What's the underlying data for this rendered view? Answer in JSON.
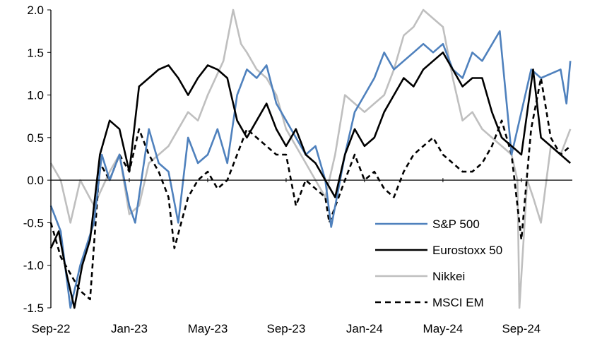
{
  "chart_data": {
    "type": "line",
    "title": "",
    "xlabel": "",
    "ylabel": "",
    "x_unit": "months since Sep-22",
    "xlim": [
      0,
      26.6
    ],
    "ylim": [
      -1.5,
      2.0
    ],
    "yticks": [
      -1.5,
      -1.0,
      -0.5,
      0.0,
      0.5,
      1.0,
      1.5,
      2.0
    ],
    "ytick_labels": [
      "-1.5",
      "-1.0",
      "-0.5",
      "0.0",
      "0.5",
      "1.0",
      "1.5",
      "2.0"
    ],
    "xticks": [
      0,
      4,
      8,
      12,
      16,
      20,
      24
    ],
    "xtick_labels": [
      "Sep-22",
      "Jan-23",
      "May-23",
      "Sep-23",
      "Jan-24",
      "May-24",
      "Sep-24"
    ],
    "grid": false,
    "legend_position": "bottom-right",
    "series": [
      {
        "name": "S&P 500",
        "color": "#4f81bd",
        "style": "solid",
        "x": [
          0,
          0.5,
          1,
          1.5,
          2.2,
          2.6,
          3,
          3.5,
          4,
          4.3,
          5,
          5.5,
          6,
          6.5,
          7,
          7.5,
          8,
          8.5,
          9,
          9.5,
          10,
          10.5,
          11,
          11.5,
          12,
          12.5,
          13,
          13.5,
          14,
          14.3,
          15,
          15.5,
          16,
          16.5,
          17,
          17.5,
          18,
          18.5,
          19,
          19.5,
          20,
          20.5,
          21,
          21.5,
          22,
          22.9,
          23.5,
          24,
          24.5,
          25,
          25.5,
          26,
          26.3,
          26.5
        ],
        "y": [
          -0.3,
          -0.6,
          -1.5,
          -1.0,
          -0.5,
          0.3,
          0.0,
          0.3,
          -0.3,
          -0.5,
          0.6,
          0.2,
          0.1,
          -0.5,
          0.5,
          0.2,
          0.3,
          0.6,
          0.2,
          1.0,
          1.3,
          1.2,
          1.35,
          0.9,
          0.7,
          0.5,
          0.3,
          0.4,
          0.0,
          -0.55,
          0.3,
          0.8,
          1.0,
          1.2,
          1.5,
          1.3,
          1.4,
          1.5,
          1.6,
          1.5,
          1.6,
          1.3,
          1.2,
          1.5,
          1.4,
          1.75,
          0.3,
          0.8,
          1.3,
          1.2,
          1.25,
          1.3,
          0.9,
          1.4
        ]
      },
      {
        "name": "Eurostoxx 50",
        "color": "#000000",
        "style": "solid",
        "x": [
          0,
          0.4,
          0.8,
          1.2,
          1.6,
          2,
          2.5,
          3,
          3.5,
          4,
          4.5,
          5,
          5.5,
          6,
          6.5,
          7,
          7.5,
          8,
          8.5,
          9,
          9.5,
          10,
          10.5,
          11,
          11.5,
          12,
          12.5,
          13,
          13.5,
          14,
          14.5,
          15,
          15.5,
          16,
          16.5,
          17,
          17.5,
          18,
          18.5,
          19,
          19.5,
          20,
          20.5,
          21,
          21.5,
          22,
          22.5,
          23,
          23.5,
          24,
          24.6,
          25,
          25.5,
          26,
          26.5
        ],
        "y": [
          -0.8,
          -0.6,
          -1.1,
          -1.5,
          -1.0,
          -0.7,
          0.3,
          0.7,
          0.6,
          0.1,
          1.1,
          1.2,
          1.3,
          1.35,
          1.2,
          1.0,
          1.2,
          1.35,
          1.3,
          1.2,
          0.7,
          0.5,
          0.7,
          0.9,
          0.6,
          0.4,
          0.6,
          0.3,
          0.2,
          0.0,
          -0.2,
          0.3,
          0.6,
          0.4,
          0.5,
          0.8,
          1.0,
          1.2,
          1.1,
          1.3,
          1.4,
          1.5,
          1.3,
          1.1,
          1.2,
          1.2,
          0.8,
          0.5,
          0.4,
          0.3,
          1.3,
          0.5,
          0.4,
          0.3,
          0.2
        ]
      },
      {
        "name": "Nikkei",
        "color": "#bfbfbf",
        "style": "solid",
        "x": [
          0,
          0.5,
          1,
          1.5,
          2.2,
          3,
          3.5,
          4,
          4.5,
          5,
          5.5,
          6,
          6.5,
          7,
          7.5,
          8,
          8.8,
          9.3,
          9.7,
          10,
          10.5,
          11,
          11.5,
          12,
          12.5,
          13,
          13.5,
          14,
          14.5,
          15,
          15.5,
          16,
          16.5,
          17,
          17.5,
          18,
          18.5,
          19,
          19.5,
          20,
          20.5,
          21,
          21.5,
          22,
          22.5,
          23,
          23.5,
          23.8,
          23.9,
          24.3,
          24.6,
          25,
          25.5,
          26,
          26.5
        ],
        "y": [
          0.2,
          0.0,
          -0.5,
          0.0,
          -0.3,
          0.1,
          0.3,
          -0.4,
          -0.3,
          0.2,
          0.3,
          0.4,
          0.6,
          0.8,
          0.7,
          1.0,
          1.4,
          2.0,
          1.6,
          1.5,
          1.3,
          1.2,
          1.0,
          0.6,
          0.4,
          0.2,
          0.0,
          -0.2,
          0.3,
          1.0,
          0.9,
          0.8,
          0.9,
          1.0,
          1.3,
          1.7,
          1.8,
          2.0,
          1.9,
          1.8,
          1.2,
          0.7,
          0.8,
          0.6,
          0.5,
          0.4,
          0.3,
          0.0,
          -1.5,
          0.0,
          -0.2,
          -0.5,
          0.4,
          0.3,
          0.6
        ]
      },
      {
        "name": "MSCI EM",
        "color": "#000000",
        "style": "dashed",
        "x": [
          0,
          0.5,
          1,
          1.5,
          2,
          2.5,
          3,
          3.5,
          4,
          4.5,
          5,
          5.5,
          6,
          6.3,
          7,
          7.5,
          8,
          8.5,
          9,
          9.5,
          10,
          10.5,
          11,
          11.5,
          12,
          12.5,
          13,
          13.5,
          14,
          14.2,
          15,
          15.5,
          16,
          16.5,
          17,
          17.5,
          18,
          18.5,
          19,
          19.5,
          20,
          20.5,
          21,
          21.5,
          22,
          22.5,
          23,
          23.5,
          24,
          24.5,
          25,
          25.5,
          26,
          26.5
        ],
        "y": [
          -0.5,
          -0.9,
          -1.1,
          -1.3,
          -1.4,
          0.2,
          0.0,
          0.3,
          0.1,
          0.6,
          0.3,
          0.1,
          -0.2,
          -0.8,
          -0.2,
          0.0,
          0.1,
          -0.1,
          0.0,
          0.3,
          0.6,
          0.5,
          0.4,
          0.3,
          0.3,
          -0.3,
          0.0,
          -0.1,
          -0.2,
          -0.5,
          0.0,
          0.3,
          0.0,
          0.1,
          -0.1,
          -0.2,
          0.1,
          0.3,
          0.4,
          0.5,
          0.3,
          0.2,
          0.1,
          0.1,
          0.2,
          0.4,
          0.7,
          0.3,
          -0.7,
          0.6,
          1.2,
          0.5,
          0.3,
          0.4
        ]
      }
    ]
  }
}
